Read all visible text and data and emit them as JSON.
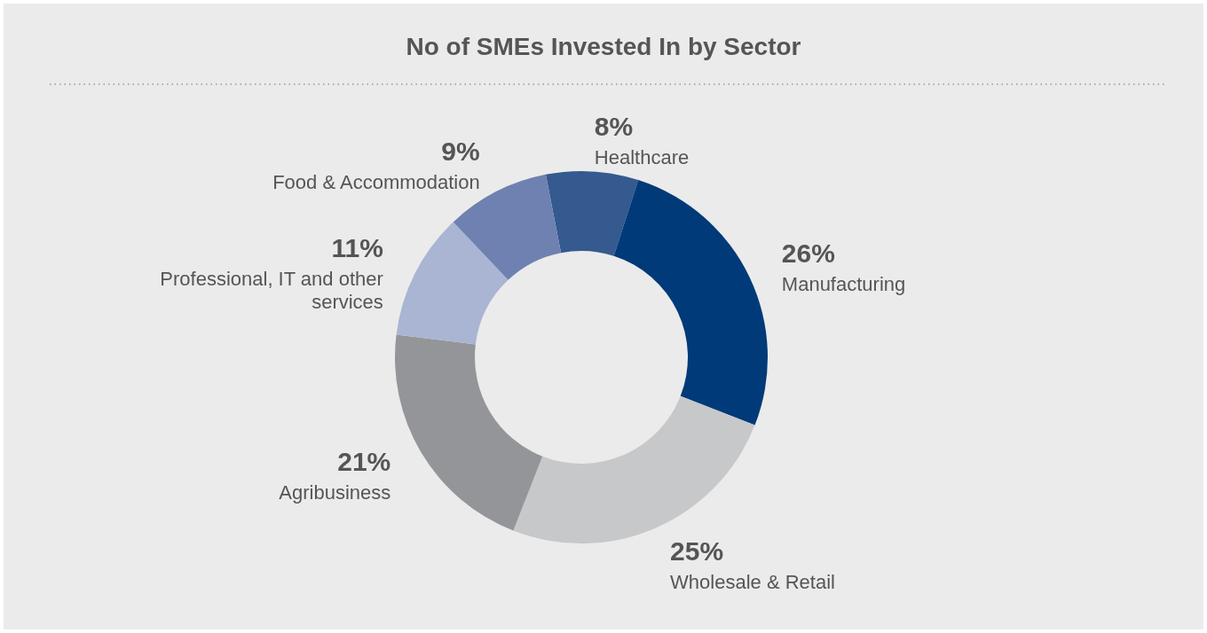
{
  "chart_data": {
    "type": "donut",
    "title": "No of SMEs Invested In by Sector",
    "categories": [
      "Healthcare",
      "Manufacturing",
      "Wholesale & Retail",
      "Agribusiness",
      "Professional, IT and other services",
      "Food & Accommodation"
    ],
    "values": [
      8,
      26,
      25,
      21,
      11,
      9
    ],
    "value_labels": [
      "8%",
      "26%",
      "25%",
      "21%",
      "11%",
      "9%"
    ],
    "colors": [
      "#345a8f",
      "#003a78",
      "#c6c8ca",
      "#939598",
      "#a9b5d3",
      "#6f81b0"
    ]
  }
}
